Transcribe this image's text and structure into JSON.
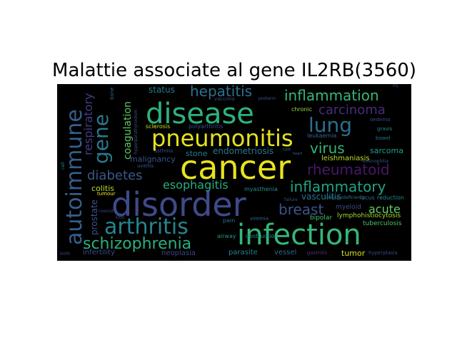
{
  "title": "Malattie associate al gene IL2RB(3560)",
  "words": [
    {
      "id": "disease",
      "text": "disease",
      "color": "#2db37d"
    },
    {
      "id": "cancer",
      "text": "cancer",
      "color": "#e8e31b"
    },
    {
      "id": "disorder",
      "text": "disorder",
      "color": "#3f4a8a"
    },
    {
      "id": "infection",
      "text": "infection",
      "color": "#35b779"
    },
    {
      "id": "pneumonitis",
      "text": "pneumonitis",
      "color": "#e6e21d"
    },
    {
      "id": "autoimmune",
      "text": "autoimmune",
      "color": "#355f8d"
    },
    {
      "id": "gene",
      "text": "gene",
      "color": "#2a788e"
    },
    {
      "id": "arthritis",
      "text": "arthritis",
      "color": "#25858e"
    },
    {
      "id": "schizophrenia",
      "text": "schizophrenia",
      "color": "#2ab07f"
    },
    {
      "id": "lung",
      "text": "lung",
      "color": "#2e6e8e"
    },
    {
      "id": "hepatitis",
      "text": "hepatitis",
      "color": "#2c728e"
    },
    {
      "id": "inflammation",
      "text": "inflammation",
      "color": "#35b779"
    },
    {
      "id": "carcinoma",
      "text": "carcinoma",
      "color": "#472d7b"
    },
    {
      "id": "virus",
      "text": "virus",
      "color": "#31b57b"
    },
    {
      "id": "rheumatoid",
      "text": "rheumatoid",
      "color": "#48186a"
    },
    {
      "id": "inflammatory",
      "text": "inflammatory",
      "color": "#20a386"
    },
    {
      "id": "diabetes",
      "text": "diabetes",
      "color": "#38598c"
    },
    {
      "id": "breast",
      "text": "breast",
      "color": "#3b528b"
    },
    {
      "id": "respiratory",
      "text": "respiratory",
      "color": "#433e85"
    },
    {
      "id": "esophagitis",
      "text": "esophagitis",
      "color": "#27ad81"
    },
    {
      "id": "coagulation",
      "text": "coagulation",
      "color": "#5ec962"
    },
    {
      "id": "acute",
      "text": "acute",
      "color": "#63cb5f"
    },
    {
      "id": "prostate",
      "text": "prostate",
      "color": "#3a548c"
    },
    {
      "id": "endometriosis",
      "text": "endometriosis",
      "color": "#2a788e"
    },
    {
      "id": "malignancy",
      "text": "malignancy",
      "color": "#3b528b"
    },
    {
      "id": "stone",
      "text": "stone",
      "color": "#287d8e"
    },
    {
      "id": "status",
      "text": "status",
      "color": "#29798e"
    },
    {
      "id": "colitis",
      "text": "colitis",
      "color": "#b5de2b"
    },
    {
      "id": "vasculitis",
      "text": "vasculitis",
      "color": "#2c738e"
    },
    {
      "id": "sarcoma",
      "text": "sarcoma",
      "color": "#1fa088"
    },
    {
      "id": "leishmaniasis",
      "text": "leishmaniasis",
      "color": "#bddf26"
    },
    {
      "id": "infertility",
      "text": "infertility",
      "color": "#3e4a89"
    },
    {
      "id": "neoplasia",
      "text": "neoplasia",
      "color": "#414487"
    },
    {
      "id": "parasite",
      "text": "parasite",
      "color": "#26828e"
    },
    {
      "id": "vessel",
      "text": "vessel",
      "color": "#31668e"
    },
    {
      "id": "tumor",
      "text": "tumor",
      "color": "#d8e219"
    },
    {
      "id": "tuberculosis",
      "text": "tuberculosis",
      "color": "#4ac16d"
    },
    {
      "id": "lymphohistiocytosis",
      "text": "lymphohistiocytosis",
      "color": "#a2da37"
    },
    {
      "id": "myeloid",
      "text": "myeloid",
      "color": "#3d4d8a"
    },
    {
      "id": "bipolar",
      "text": "bipolar",
      "color": "#4ac16d"
    },
    {
      "id": "locus",
      "text": "locus",
      "color": "#2f6c8e"
    },
    {
      "id": "reduction",
      "text": "reduction",
      "color": "#238a8d"
    },
    {
      "id": "myasthenia",
      "text": "myasthenia",
      "color": "#21908d"
    },
    {
      "id": "airway",
      "text": "airway",
      "color": "#1f988b"
    },
    {
      "id": "destruction",
      "text": "destruction",
      "color": "#218f8d"
    },
    {
      "id": "sclerosis",
      "text": "sclerosis",
      "color": "#c8e020"
    },
    {
      "id": "polyarthritis",
      "text": "polyarthritis",
      "color": "#3b528b"
    },
    {
      "id": "chronic",
      "text": "chronic",
      "color": "#9fda3a"
    },
    {
      "id": "leukaemia",
      "text": "leukaemia",
      "color": "#32648e"
    },
    {
      "id": "oedema",
      "text": "oedema",
      "color": "#3e4989"
    },
    {
      "id": "gravis",
      "text": "gravis",
      "color": "#238a8d"
    },
    {
      "id": "bowel",
      "text": "bowel",
      "color": "#2c718e"
    },
    {
      "id": "asthma",
      "text": "asthma",
      "color": "#3d4e8a"
    },
    {
      "id": "uveitis",
      "text": "uveitis",
      "color": "#38588c"
    },
    {
      "id": "tumour",
      "text": "tumour",
      "color": "#fde725"
    },
    {
      "id": "cell",
      "text": "cell",
      "color": "#3b528b"
    },
    {
      "id": "pain",
      "text": "pain",
      "color": "#2e6f8e"
    },
    {
      "id": "viremia",
      "text": "viremia",
      "color": "#33638d"
    },
    {
      "id": "gastritis",
      "text": "gastritis",
      "color": "#453781"
    },
    {
      "id": "hyperplasia",
      "text": "hyperplasia",
      "color": "#404588"
    },
    {
      "id": "vaccinia",
      "text": "vaccinia",
      "color": "#3f4889"
    },
    {
      "id": "failure",
      "text": "failure",
      "color": "#3e4989"
    },
    {
      "id": "immunodeficiency",
      "text": "immunodeficiency",
      "color": "#2a768e"
    },
    {
      "id": "bone",
      "text": "bone",
      "color": "#30698e"
    },
    {
      "id": "birth",
      "text": "birth",
      "color": "#3e4989"
    },
    {
      "id": "preterm",
      "text": "preterm",
      "color": "#3c4f8a"
    },
    {
      "id": "hyperparathyroidism",
      "text": "hyperparathyroidism",
      "color": "#3c508b"
    },
    {
      "id": "heart",
      "text": "heart",
      "color": "#30698e"
    },
    {
      "id": "type",
      "text": "type",
      "color": "#2f6b8e"
    },
    {
      "id": "cell_v",
      "text": "cell",
      "color": "#23898e"
    },
    {
      "id": "coexist",
      "text": "coexist",
      "color": "#3e4989"
    },
    {
      "id": "eosin",
      "text": "eosinophilia",
      "color": "#3b528b"
    },
    {
      "id": "mj",
      "text": "mj",
      "color": "#414487"
    }
  ]
}
